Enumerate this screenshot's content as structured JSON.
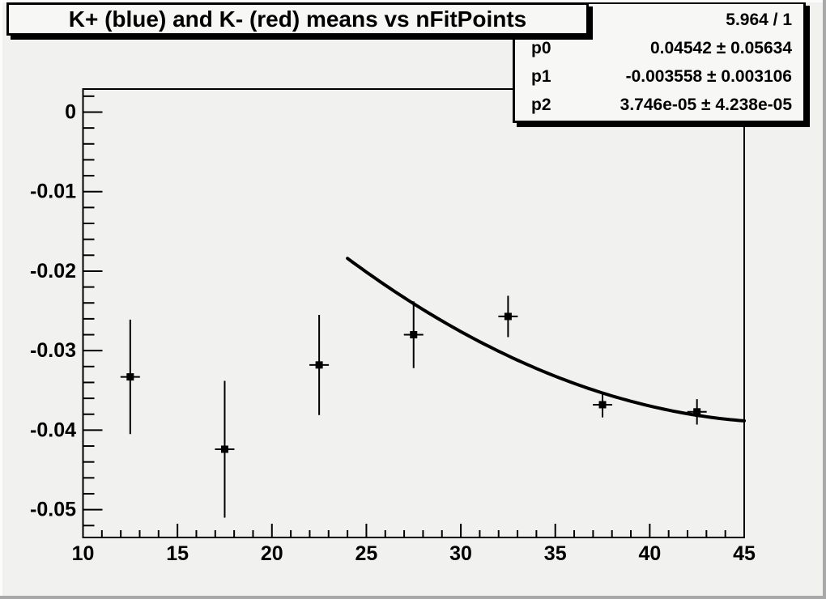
{
  "title_box": {
    "text": "K+ (blue) and K- (red) means vs nFitPoints"
  },
  "stats_box": {
    "rows": [
      {
        "label": "",
        "value": "5.964 / 1"
      },
      {
        "label": "p0",
        "value": "0.04542 ± 0.05634"
      },
      {
        "label": "p1",
        "value": "-0.003558 ± 0.003106"
      },
      {
        "label": "p2",
        "value": "3.746e-05 ± 4.238e-05"
      }
    ]
  },
  "colors": {
    "canvas_background": "#f1f1f0",
    "pave_background": "#f7f7f6",
    "axis_and_data": "#000000",
    "bevel_light": "#fcfcfc",
    "bevel_dark": "#a8a8a8"
  },
  "chart_data": {
    "type": "scatter",
    "title": "K+ (blue) and K- (red) means vs nFitPoints",
    "xlabel": "",
    "ylabel": "",
    "grid": false,
    "legend": false,
    "xlim": [
      10,
      45
    ],
    "ylim": [
      -0.0535,
      0.0029
    ],
    "xticks": [
      10,
      15,
      20,
      25,
      30,
      35,
      40,
      45
    ],
    "yticks": [
      0,
      -0.01,
      -0.02,
      -0.03,
      -0.04,
      -0.05
    ],
    "ytick_labels": [
      "0",
      "-0.01",
      "-0.02",
      "-0.03",
      "-0.04",
      "-0.05"
    ],
    "minor_x_step": 1,
    "minor_y_step": 0.002,
    "series": [
      {
        "name": "means",
        "marker": "filled-square",
        "color": "#000000",
        "points": [
          {
            "x": 12.5,
            "y": -0.0333,
            "ey": 0.0072
          },
          {
            "x": 17.5,
            "y": -0.0424,
            "ey": 0.0086
          },
          {
            "x": 22.5,
            "y": -0.0318,
            "ey": 0.0063
          },
          {
            "x": 27.5,
            "y": -0.028,
            "ey": 0.0042
          },
          {
            "x": 32.5,
            "y": -0.0257,
            "ey": 0.0026
          },
          {
            "x": 37.5,
            "y": -0.0368,
            "ey": 0.0016
          },
          {
            "x": 42.5,
            "y": -0.0377,
            "ey": 0.0016
          }
        ]
      }
    ],
    "fit": {
      "type": "pol2",
      "p0": 0.04542,
      "p1": -0.003558,
      "p2": 3.746e-05,
      "chi2_ndf": "5.964 / 1",
      "x_range": [
        24,
        45
      ],
      "color": "#000000"
    }
  }
}
